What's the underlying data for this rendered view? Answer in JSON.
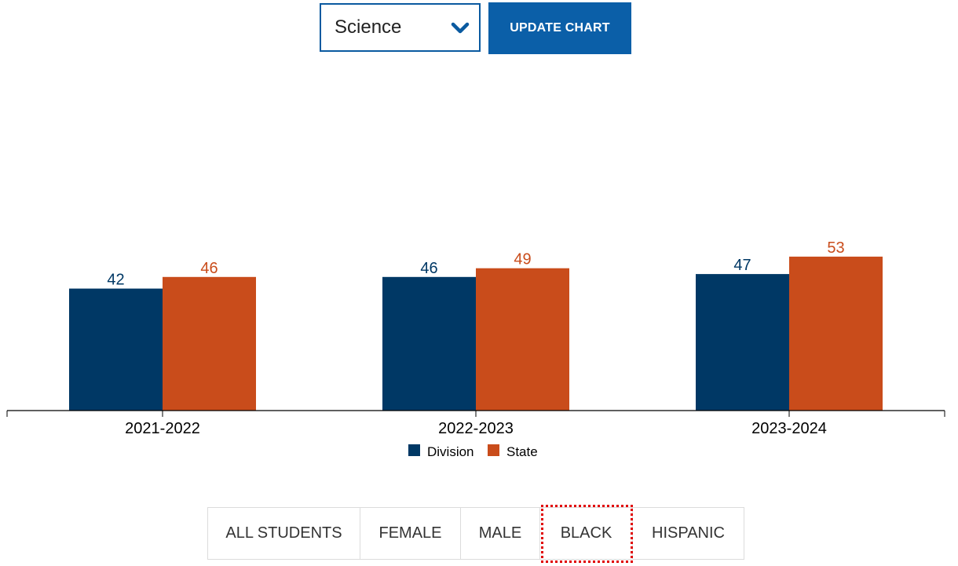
{
  "controls": {
    "subject_select": {
      "value": "Science"
    },
    "update_button_label": "UPDATE CHART"
  },
  "colors": {
    "division": "#003865",
    "state": "#c94c1b",
    "accent": "#0b5fa8",
    "focus": "#e00000"
  },
  "chart_data": {
    "type": "bar",
    "categories": [
      "2021-2022",
      "2022-2023",
      "2023-2024"
    ],
    "series": [
      {
        "name": "Division",
        "values": [
          42,
          46,
          47
        ],
        "color": "#003865"
      },
      {
        "name": "State",
        "values": [
          46,
          49,
          53
        ],
        "color": "#c94c1b"
      }
    ],
    "ylim": [
      0,
      100
    ],
    "legend": "bottom-center",
    "grid": false,
    "data_labels": true
  },
  "tabs": [
    {
      "label": "ALL STUDENTS"
    },
    {
      "label": "FEMALE"
    },
    {
      "label": "MALE"
    },
    {
      "label": "BLACK",
      "focused": true
    },
    {
      "label": "HISPANIC"
    }
  ]
}
